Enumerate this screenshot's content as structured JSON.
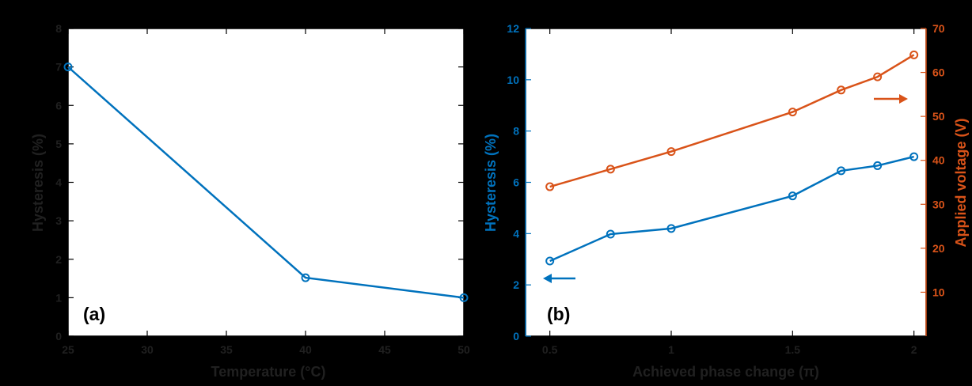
{
  "chart_data": [
    {
      "type": "line",
      "panel_label": "(a)",
      "xlabel": "Temperature (°C)",
      "ylabel": "Hysteresis (%)",
      "xlim": [
        25,
        50
      ],
      "ylim": [
        0,
        8
      ],
      "xticks": [
        "25",
        "30",
        "35",
        "40",
        "45",
        "50"
      ],
      "yticks": [
        "0",
        "1",
        "2",
        "3",
        "4",
        "5",
        "6",
        "7",
        "8"
      ],
      "grid": false,
      "series": [
        {
          "color": "#0072BD",
          "x": [
            25,
            40,
            50
          ],
          "y": [
            7.0,
            1.52,
            1.0
          ]
        }
      ]
    },
    {
      "type": "line",
      "panel_label": "(b)",
      "xlabel": "Achieved phase change (π)",
      "ylabel_left": "Hysteresis (%)",
      "ylabel_right": "Applied voltage (V)",
      "xlim": [
        0.4,
        2.05
      ],
      "ylim_left": [
        0,
        12
      ],
      "ylim_right": [
        0,
        70
      ],
      "xticks": [
        "0.5",
        "1",
        "1.5",
        "2"
      ],
      "yticks_left": [
        "0",
        "2",
        "4",
        "6",
        "8",
        "10",
        "12"
      ],
      "yticks_right": [
        "10",
        "20",
        "30",
        "40",
        "50",
        "60",
        "70"
      ],
      "grid": false,
      "series": [
        {
          "axis": "left",
          "color": "#0072BD",
          "arrow": "left",
          "x": [
            0.5,
            0.75,
            1.0,
            1.5,
            1.7,
            1.85,
            2.0
          ],
          "y": [
            2.93,
            3.98,
            4.2,
            5.47,
            6.45,
            6.65,
            7.0
          ]
        },
        {
          "axis": "right",
          "color": "#D95319",
          "arrow": "right",
          "x": [
            0.5,
            0.75,
            1.0,
            1.5,
            1.7,
            1.85,
            2.0
          ],
          "y": [
            34,
            38,
            42,
            51,
            56,
            59,
            64
          ]
        }
      ]
    }
  ]
}
